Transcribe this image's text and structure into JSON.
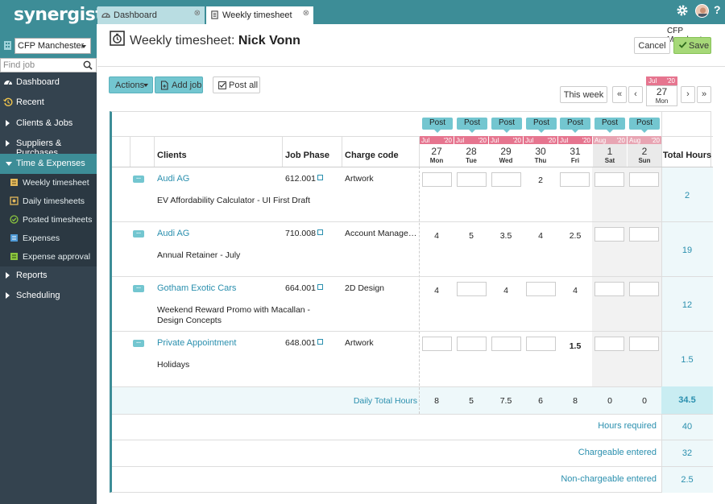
{
  "app": {
    "logo": "synergist"
  },
  "tabs": [
    {
      "label": "Dashboard",
      "close": "⊗"
    },
    {
      "label": "Weekly timesheet",
      "close": "⊗"
    }
  ],
  "topbar": {
    "help": "?"
  },
  "sidebar": {
    "company": "CFP Manchester",
    "find_job_placeholder": "Find job",
    "items": [
      {
        "label": "Dashboard"
      },
      {
        "label": "Recent"
      },
      {
        "label": "Clients & Jobs"
      },
      {
        "label": "Suppliers & Purchases"
      },
      {
        "label": "Time & Expenses"
      },
      {
        "label": "Reports"
      },
      {
        "label": "Scheduling"
      }
    ],
    "subitems": [
      {
        "label": "Weekly timesheet"
      },
      {
        "label": "Daily timesheets"
      },
      {
        "label": "Posted timesheets"
      },
      {
        "label": "Expenses"
      },
      {
        "label": "Expense approval"
      }
    ]
  },
  "header": {
    "title_prefix": "Weekly timesheet: ",
    "title_name": "Nick Vonn",
    "company": "CFP Manchester",
    "cancel": "Cancel",
    "save": "Save"
  },
  "toolbar": {
    "actions": "Actions",
    "add_job": "Add job",
    "post_all": "Post all",
    "this_week": "This week",
    "first": "«",
    "prev": "‹",
    "next": "›",
    "last": "»"
  },
  "datepicker": {
    "month": "Jul",
    "year": "'20",
    "day": "27",
    "weekday": "Mon"
  },
  "grid": {
    "post_label": "Post",
    "columns": {
      "clients": "Clients",
      "job_phase": "Job Phase",
      "charge_code": "Charge code",
      "total_hours": "Total Hours"
    },
    "days": [
      {
        "month": "Jul",
        "year": "'20",
        "day": "27",
        "weekday": "Mon"
      },
      {
        "month": "Jul",
        "year": "'20",
        "day": "28",
        "weekday": "Tue"
      },
      {
        "month": "Jul",
        "year": "'20",
        "day": "29",
        "weekday": "Wed"
      },
      {
        "month": "Jul",
        "year": "'20",
        "day": "30",
        "weekday": "Thu"
      },
      {
        "month": "Jul",
        "year": "'20",
        "day": "31",
        "weekday": "Fri"
      },
      {
        "month": "Aug",
        "year": "'20",
        "day": "1",
        "weekday": "Sat"
      },
      {
        "month": "Aug",
        "year": "'20",
        "day": "2",
        "weekday": "Sun"
      }
    ],
    "rows": [
      {
        "client": "Audi AG",
        "job": "EV Affordability Calculator - UI First Draft",
        "phase": "612.001",
        "charge": "Artwork",
        "hours": [
          "",
          "",
          "",
          "2",
          "",
          "",
          ""
        ],
        "bold": [
          false,
          false,
          false,
          false,
          false,
          false,
          false
        ],
        "total": "2"
      },
      {
        "client": "Audi AG",
        "job": "Annual Retainer - July",
        "phase": "710.008",
        "charge": "Account Management",
        "hours": [
          "4",
          "5",
          "3.5",
          "4",
          "2.5",
          "",
          ""
        ],
        "bold": [
          false,
          false,
          false,
          false,
          false,
          false,
          false
        ],
        "total": "19"
      },
      {
        "client": "Gotham Exotic Cars",
        "job": "Weekend Reward Promo with Macallan - Design Concepts",
        "phase": "664.001",
        "charge": "2D Design",
        "hours": [
          "4",
          "",
          "4",
          "",
          "4",
          "",
          ""
        ],
        "bold": [
          false,
          false,
          false,
          false,
          false,
          false,
          false
        ],
        "total": "12"
      },
      {
        "client": "Private Appointment",
        "job": "Holidays",
        "phase": "648.001",
        "charge": "Artwork",
        "hours": [
          "",
          "",
          "",
          "",
          "1.5",
          "",
          ""
        ],
        "bold": [
          false,
          false,
          false,
          false,
          true,
          false,
          false
        ],
        "total": "1.5"
      }
    ],
    "daily_total_label": "Daily Total Hours",
    "daily_totals": [
      "8",
      "5",
      "7.5",
      "6",
      "8",
      "0",
      "0"
    ],
    "grand_total": "34.5",
    "summary": [
      {
        "label": "Hours required",
        "value": "40"
      },
      {
        "label": "Chargeable entered",
        "value": "32"
      },
      {
        "label": "Non-chargeable entered",
        "value": "2.5"
      }
    ]
  },
  "colors": {
    "teal": "#3d8d97",
    "accent": "#73c6d0",
    "sidebar": "#34434f",
    "pink": "#e6758f",
    "link": "#2a8fae",
    "save_green": "#a6d878"
  }
}
